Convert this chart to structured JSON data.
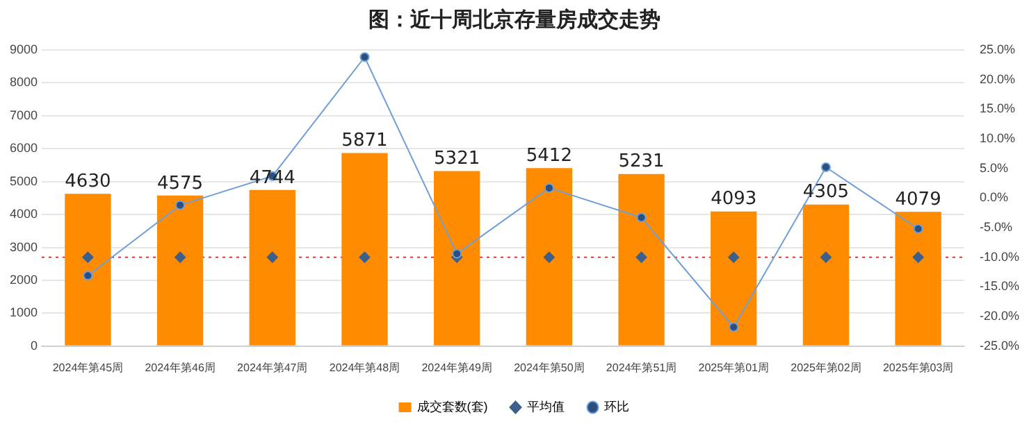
{
  "chart_data": {
    "type": "bar",
    "title": "图：近十周北京存量房成交走势",
    "categories": [
      "2024年第45周",
      "2024年第46周",
      "2024年第47周",
      "2024年第48周",
      "2024年第49周",
      "2024年第50周",
      "2024年第51周",
      "2025年第01周",
      "2025年第02周",
      "2025年第03周"
    ],
    "series": [
      {
        "name": "成交套数(套)",
        "color": "#ff8c00",
        "values": [
          4630,
          4575,
          4744,
          5871,
          5321,
          5412,
          5231,
          4093,
          4305,
          4079
        ],
        "value_labels": [
          "4630",
          "4575",
          "4744",
          "5871",
          "5321",
          "5412",
          "5231",
          "4093",
          "4305",
          "4079"
        ]
      },
      {
        "name": "平均值",
        "type": "scatter",
        "marker": "diamond",
        "axis": "y2",
        "color": "#3d5f8c",
        "values": [
          -10,
          -10,
          -10,
          -10,
          -10,
          -10,
          -10,
          -10,
          -10,
          -10
        ]
      },
      {
        "name": "环比",
        "type": "line",
        "marker": "circle",
        "axis": "y2",
        "color": "#6f9fd8",
        "values": [
          -13.1,
          -1.2,
          3.7,
          23.8,
          -9.4,
          1.7,
          -3.3,
          -21.8,
          5.2,
          -5.2
        ]
      }
    ],
    "ylim": [
      0,
      9000
    ],
    "yticks": [
      0,
      1000,
      2000,
      3000,
      4000,
      5000,
      6000,
      7000,
      8000,
      9000
    ],
    "y2lim": [
      -25,
      25
    ],
    "y2ticks": [
      {
        "value": -25,
        "label": "-25.0%"
      },
      {
        "value": -20,
        "label": "-20.0%"
      },
      {
        "value": -15,
        "label": "-15.0%"
      },
      {
        "value": -10,
        "label": "-10.0%"
      },
      {
        "value": -5,
        "label": "-5.0%"
      },
      {
        "value": 0,
        "label": "0.0%"
      },
      {
        "value": 5,
        "label": "5.0%"
      },
      {
        "value": 10,
        "label": "10.0%"
      },
      {
        "value": 15,
        "label": "15.0%"
      },
      {
        "value": 20,
        "label": "20.0%"
      },
      {
        "value": 25,
        "label": "25.0%"
      }
    ],
    "ref_lines": [
      {
        "axis": "y2",
        "value": -10,
        "color": "#e0392b",
        "line_style": "dotted"
      }
    ],
    "grid": "y",
    "legend": "bottom"
  }
}
